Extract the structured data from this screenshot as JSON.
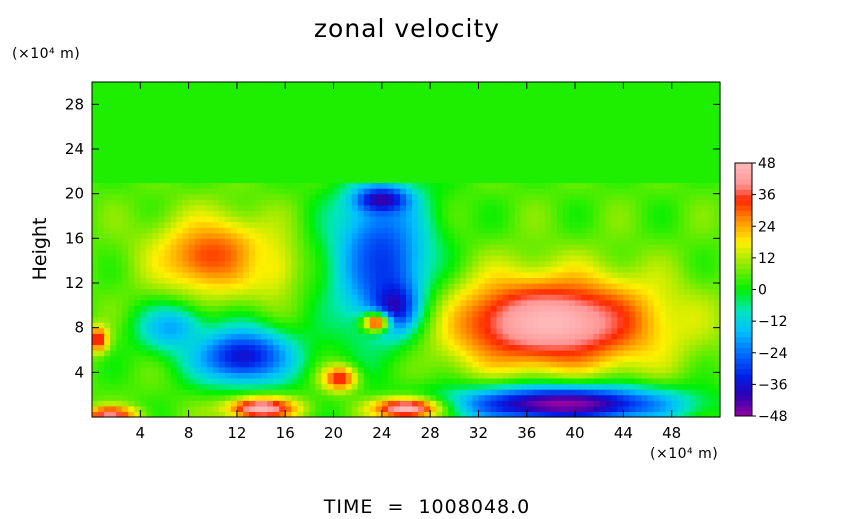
{
  "chart_data": {
    "type": "heatmap",
    "title": "zonal velocity",
    "ylabel": "Height",
    "xlabel": "",
    "x_unit": "(×10⁴ m)",
    "y_unit": "(×10⁴ m)",
    "footer": "TIME  =  1008048.0",
    "xlim": [
      0,
      52
    ],
    "ylim": [
      0,
      30
    ],
    "x_ticks": [
      4,
      8,
      12,
      16,
      20,
      24,
      28,
      32,
      36,
      40,
      44,
      48
    ],
    "y_ticks": [
      4,
      8,
      12,
      16,
      20,
      24,
      28
    ],
    "colorbar": {
      "min": -48,
      "max": 48,
      "ticks": [
        48,
        36,
        24,
        12,
        0,
        -12,
        -24,
        -36,
        -48
      ],
      "tick_labels": [
        "48",
        "36",
        "24",
        "12",
        "0",
        "−12",
        "−24",
        "−36",
        "−48"
      ]
    },
    "features": [
      {
        "x": 38,
        "y": 8.5,
        "sx": 6.5,
        "sy": 3.0,
        "value": 48
      },
      {
        "x": 10,
        "y": 14.5,
        "sx": 3.5,
        "sy": 2.5,
        "value": 32
      },
      {
        "x": 15,
        "y": 13.5,
        "sx": 1.5,
        "sy": 2.0,
        "value": 18
      },
      {
        "x": 12.5,
        "y": 5.5,
        "sx": 3.0,
        "sy": 1.8,
        "value": -36
      },
      {
        "x": 6.5,
        "y": 8.0,
        "sx": 2.0,
        "sy": 1.5,
        "value": -18
      },
      {
        "x": 24,
        "y": 14,
        "sx": 3.0,
        "sy": 5.0,
        "value": -30
      },
      {
        "x": 25,
        "y": 10,
        "sx": 1.2,
        "sy": 1.5,
        "value": -40
      },
      {
        "x": 24,
        "y": 19.5,
        "sx": 1.5,
        "sy": 0.8,
        "value": -42
      },
      {
        "x": 39,
        "y": 1.2,
        "sx": 6.5,
        "sy": 1.2,
        "value": -48
      },
      {
        "x": 14,
        "y": 0.8,
        "sx": 2.0,
        "sy": 0.7,
        "value": 48
      },
      {
        "x": 26,
        "y": 0.8,
        "sx": 2.0,
        "sy": 0.7,
        "value": 48
      },
      {
        "x": 1.5,
        "y": 0.3,
        "sx": 1.5,
        "sy": 0.5,
        "value": 40
      },
      {
        "x": 20.5,
        "y": 3.5,
        "sx": 1.0,
        "sy": 0.8,
        "value": 36
      },
      {
        "x": 23.5,
        "y": 8.5,
        "sx": 0.8,
        "sy": 0.6,
        "value": 34
      },
      {
        "x": 0.5,
        "y": 7.0,
        "sx": 0.6,
        "sy": 0.8,
        "value": 38
      }
    ]
  }
}
